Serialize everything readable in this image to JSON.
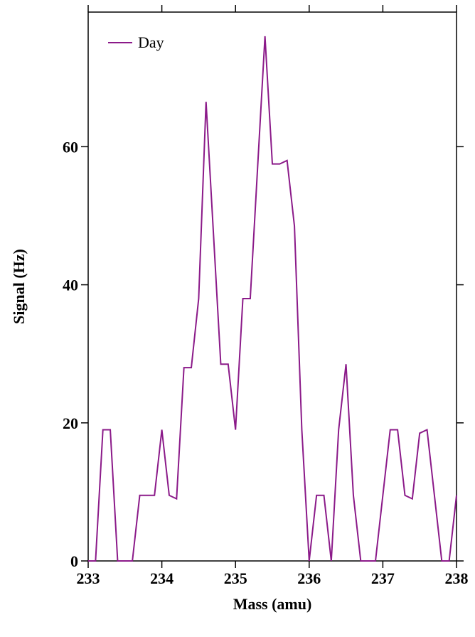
{
  "chart_data": {
    "type": "line",
    "x_label": "Mass (amu)",
    "y_label": "Signal (Hz)",
    "x": [
      233.0,
      233.1,
      233.2,
      233.3,
      233.4,
      233.5,
      233.6,
      233.7,
      233.8,
      233.9,
      234.0,
      234.1,
      234.2,
      234.3,
      234.4,
      234.5,
      234.6,
      234.7,
      234.8,
      234.9,
      235.0,
      235.1,
      235.2,
      235.3,
      235.4,
      235.5,
      235.6,
      235.7,
      235.8,
      235.9,
      236.0,
      236.1,
      236.2,
      236.3,
      236.4,
      236.5,
      236.6,
      236.7,
      236.8,
      236.9,
      237.0,
      237.1,
      237.2,
      237.3,
      237.4,
      237.5,
      237.6,
      237.7,
      237.8,
      237.9,
      238.0
    ],
    "series": [
      {
        "name": "Day",
        "color": "#8b1a89",
        "values": [
          0,
          0,
          19,
          19,
          0,
          0,
          0,
          9.5,
          9.5,
          9.5,
          19,
          9.5,
          9,
          28,
          28,
          38,
          66.5,
          47.5,
          28.5,
          28.5,
          19,
          38,
          38,
          57,
          76,
          57.5,
          57.5,
          58,
          48.5,
          19,
          0,
          9.5,
          9.5,
          0,
          19,
          28.5,
          9.5,
          0,
          0,
          0,
          9.5,
          19,
          19,
          9.5,
          9,
          18.5,
          19,
          9.5,
          0,
          0,
          9.5
        ]
      }
    ],
    "xlim": [
      233,
      238
    ],
    "xticks": [
      233,
      234,
      235,
      236,
      237,
      238
    ],
    "ylim": [
      0,
      79.5
    ],
    "yticks": [
      0,
      20,
      40,
      60
    ],
    "legend": "upper-left"
  }
}
